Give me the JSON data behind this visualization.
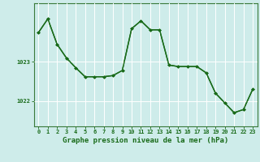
{
  "x": [
    0,
    1,
    2,
    3,
    4,
    5,
    6,
    7,
    8,
    9,
    10,
    11,
    12,
    13,
    14,
    15,
    16,
    17,
    18,
    19,
    20,
    21,
    22,
    23
  ],
  "y": [
    1023.75,
    1024.1,
    1023.45,
    1023.1,
    1022.85,
    1022.62,
    1022.62,
    1022.62,
    1022.65,
    1022.78,
    1023.85,
    1024.05,
    1023.82,
    1023.82,
    1022.92,
    1022.88,
    1022.88,
    1022.88,
    1022.72,
    1022.2,
    1021.95,
    1021.7,
    1021.78,
    1022.3
  ],
  "line_color": "#1a6b1a",
  "marker": "D",
  "marker_size": 2.0,
  "background_color": "#ceecea",
  "grid_color": "#ffffff",
  "xlabel": "Graphe pression niveau de la mer (hPa)",
  "xlabel_fontsize": 6.5,
  "xlabel_color": "#1a6b1a",
  "ytick_labels": [
    "1022",
    "1023"
  ],
  "ytick_values": [
    1022.0,
    1023.0
  ],
  "xtick_labels": [
    "0",
    "1",
    "2",
    "3",
    "4",
    "5",
    "6",
    "7",
    "8",
    "9",
    "10",
    "11",
    "12",
    "13",
    "14",
    "15",
    "16",
    "17",
    "18",
    "19",
    "20",
    "21",
    "22",
    "23"
  ],
  "ylim": [
    1021.35,
    1024.5
  ],
  "xlim": [
    -0.5,
    23.5
  ],
  "tick_color": "#1a6b1a",
  "tick_fontsize": 5.0,
  "linewidth": 1.0,
  "spine_color": "#3a7a3a"
}
